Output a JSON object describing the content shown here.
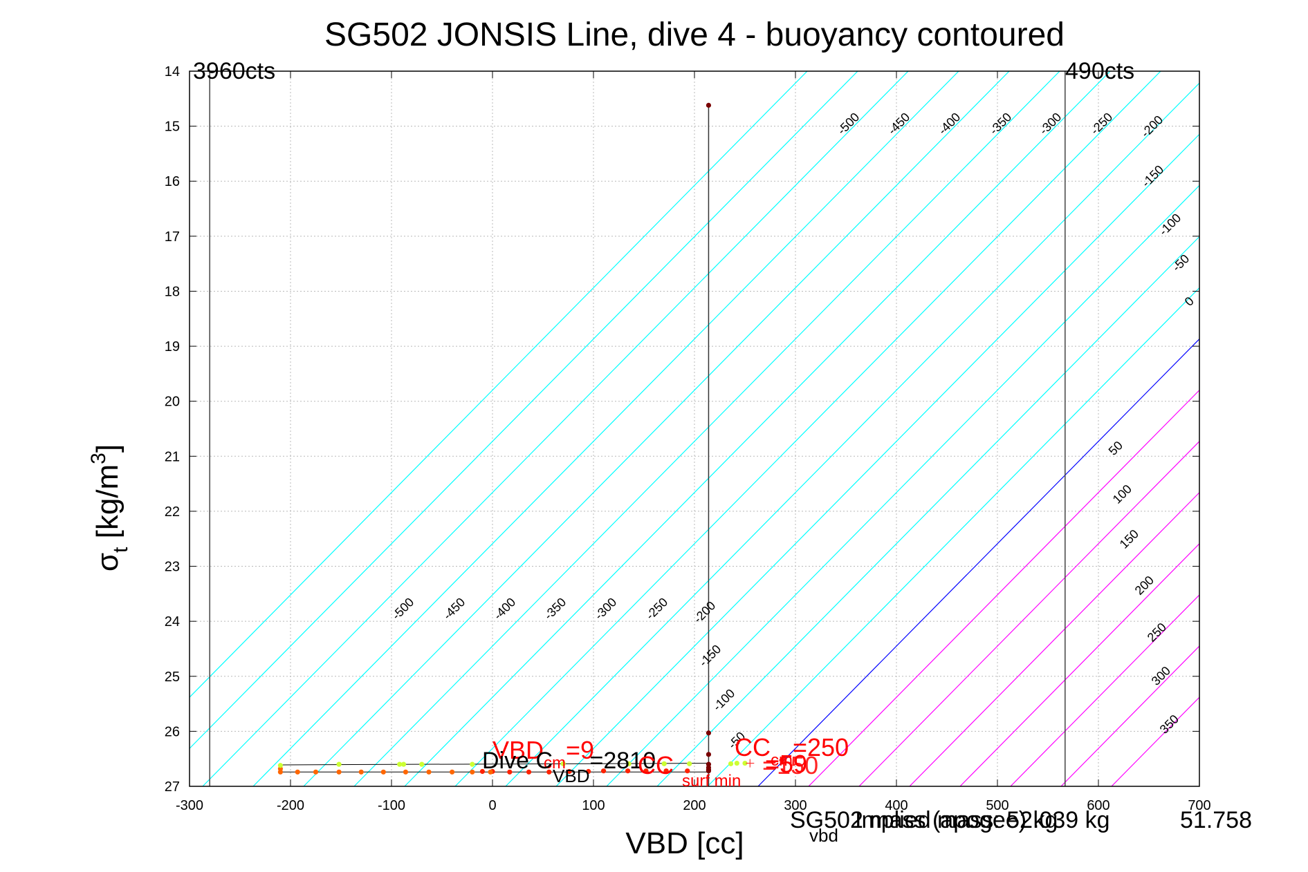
{
  "chart_data": {
    "type": "scatter",
    "title": "SG502 JONSIS Line, dive 4 - buoyancy contoured",
    "xlabel": "VBD [cc]",
    "ylabel_main": "σ",
    "ylabel_sub": "t",
    "ylabel_unit": " [kg/m",
    "ylabel_sup": "3",
    "ylabel_close": "]",
    "xlim": [
      -300,
      700
    ],
    "ylim": [
      14,
      27
    ],
    "y_reversed": true,
    "grid": true,
    "xticks": [
      -300,
      -200,
      -100,
      0,
      100,
      200,
      300,
      400,
      500,
      600,
      700
    ],
    "yticks": [
      14,
      15,
      16,
      17,
      18,
      19,
      20,
      21,
      22,
      23,
      24,
      25,
      26,
      27
    ],
    "vertical_lines": [
      {
        "x": -280,
        "label": "3960cts",
        "color": "#444444"
      },
      {
        "x": 567,
        "label": "490cts",
        "color": "#444444"
      },
      {
        "x": 214,
        "label": "",
        "color": "#333333"
      }
    ],
    "contours": {
      "negative_color": "#00ffff",
      "zero_color": "#0000ff",
      "positive_color": "#ff00ff",
      "negative_levels": [
        -500,
        -450,
        -400,
        -350,
        -300,
        -250,
        -200,
        -150,
        -100,
        -50
      ],
      "zero_level": 0,
      "positive_levels": [
        50,
        100,
        150,
        200,
        250,
        300,
        350
      ],
      "labels_upper": [
        "-500",
        "-450",
        "-400",
        "-350",
        "-300",
        "-250",
        "-200",
        "-150",
        "-100",
        "-50",
        "0"
      ],
      "labels_lower": [
        "-500",
        "-450",
        "-400",
        "-350",
        "-300",
        "-250",
        "-200",
        "-150",
        "-100",
        "-50"
      ],
      "labels_positive": [
        "50",
        "100",
        "150",
        "200",
        "250",
        "300",
        "350"
      ]
    },
    "series": [
      {
        "color": "#7a0000",
        "points": [
          [
            214,
            14.62
          ],
          [
            214,
            26.03
          ],
          [
            214,
            26.42
          ],
          [
            214,
            26.6
          ],
          [
            214,
            26.66
          ],
          [
            214,
            26.7
          ],
          [
            214,
            26.72
          ]
        ]
      },
      {
        "color": "#ff2200",
        "points": [
          [
            -10,
            26.73
          ],
          [
            0,
            26.73
          ],
          [
            17,
            26.74
          ],
          [
            36,
            26.74
          ],
          [
            56,
            26.74
          ],
          [
            76,
            26.73
          ],
          [
            95,
            26.73
          ],
          [
            110,
            26.72
          ],
          [
            134,
            26.72
          ],
          [
            152,
            26.72
          ],
          [
            172,
            26.72
          ],
          [
            193,
            26.72
          ]
        ]
      },
      {
        "color": "#ff6600",
        "points": [
          [
            -210,
            26.74
          ],
          [
            -193,
            26.74
          ],
          [
            -175,
            26.74
          ],
          [
            -152,
            26.74
          ],
          [
            -130,
            26.74
          ],
          [
            -108,
            26.74
          ],
          [
            -86,
            26.74
          ],
          [
            -63,
            26.74
          ],
          [
            -40,
            26.74
          ],
          [
            -20,
            26.74
          ],
          [
            -2,
            26.74
          ],
          [
            -210,
            26.68
          ]
        ]
      },
      {
        "color": "#ccff33",
        "points": [
          [
            -210,
            26.62
          ],
          [
            -152,
            26.6
          ],
          [
            -92,
            26.6
          ],
          [
            -88,
            26.6
          ],
          [
            -70,
            26.6
          ],
          [
            -20,
            26.6
          ],
          [
            70,
            26.59
          ],
          [
            135,
            26.59
          ],
          [
            170,
            26.59
          ],
          [
            195,
            26.59
          ],
          [
            236,
            26.59
          ],
          [
            242,
            26.58
          ],
          [
            250,
            26.58
          ]
        ]
      }
    ],
    "dive_lines": [
      [
        [
          -210,
          26.61
        ],
        [
          214,
          26.58
        ]
      ],
      [
        [
          -210,
          26.74
        ],
        [
          214,
          26.74
        ]
      ]
    ],
    "annotations": {
      "vbd_cm": {
        "main": "VBD",
        "sub": "cm",
        "rest": "=9"
      },
      "dive_c_vbd": {
        "main": "Dive C",
        "sub": "VBD",
        "rest": "=2810"
      },
      "cc_cm": {
        "main": "CC",
        "sub": "cm",
        "rest": "=250"
      },
      "cc_overlap": {
        "main": "CC",
        "rest": "=59",
        "alt": "=150"
      },
      "surf_min": "surf min",
      "cc_vbd_sub": "vbd",
      "mass_overlap_1": "SG502 mass (apogee) kg",
      "mass_overlap_2": "Implied mass: 52.039 kg",
      "mass_overlap_3": "51.758"
    }
  }
}
